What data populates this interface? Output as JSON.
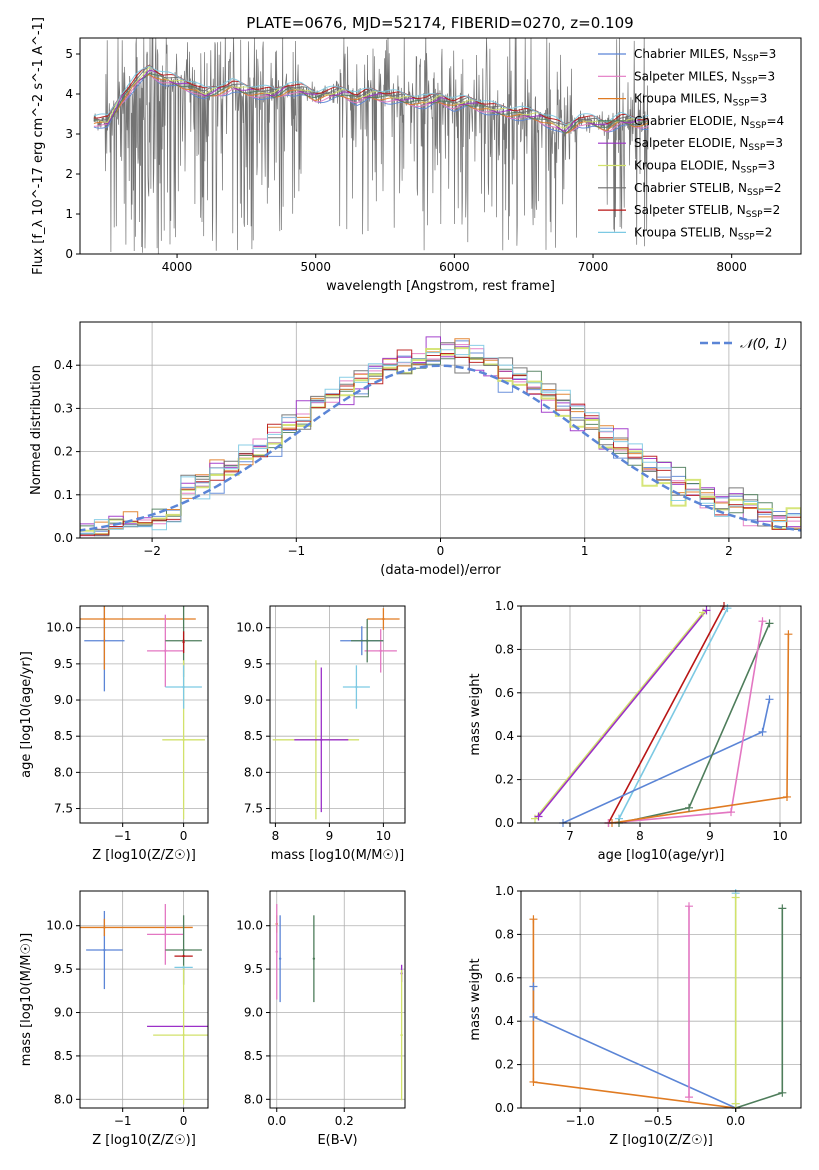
{
  "figure": {
    "title": "PLATE=0676, MJD=52174, FIBERID=0270, z=0.109",
    "colors": {
      "data_spectrum": "#808080",
      "gaussian": "#5b85d6",
      "grid": "#b0b0b0"
    }
  },
  "chart_data": [
    {
      "id": "spectrum",
      "type": "line",
      "xlabel": "wavelength [Angstrom, rest frame]",
      "ylabel": "Flux [f_λ 10^-17 erg cm^-2 s^-1 A^-1]",
      "xlim": [
        3300,
        8500
      ],
      "ylim": [
        0,
        5.4
      ],
      "xticks": [
        "4000",
        "5000",
        "6000",
        "7000",
        "8000"
      ],
      "yticks": [
        "0",
        "1",
        "2",
        "3",
        "4",
        "5"
      ],
      "grid": false,
      "legend_position": "top-right",
      "data_spectrum": {
        "range": [
          3400,
          7400
        ],
        "note_visible": "grey observed spectrum with strong noise spikes between ~3450 and ~7400 Å"
      },
      "series": [
        {
          "name": "Chabrier MILES, N_SSP=3",
          "color": "#5b85d6"
        },
        {
          "name": "Salpeter MILES, N_SSP=3",
          "color": "#e377c2"
        },
        {
          "name": "Kroupa MILES, N_SSP=3",
          "color": "#e07b22"
        },
        {
          "name": "Chabrier ELODIE, N_SSP=4",
          "color": "#4e7d5b"
        },
        {
          "name": "Salpeter ELODIE, N_SSP=3",
          "color": "#9b30c8"
        },
        {
          "name": "Kroupa ELODIE, N_SSP=3",
          "color": "#d2e26b"
        },
        {
          "name": "Chabrier STELIB, N_SSP=2",
          "color": "#6c6c6c"
        },
        {
          "name": "Salpeter STELIB, N_SSP=2",
          "color": "#b81515"
        },
        {
          "name": "Kroupa STELIB, N_SSP=2",
          "color": "#7cc9e3"
        }
      ],
      "model_curve": {
        "x": [
          3400,
          3500,
          3600,
          3700,
          3800,
          3900,
          4000,
          4100,
          4200,
          4300,
          4400,
          4500,
          4600,
          4700,
          4800,
          4900,
          5000,
          5100,
          5200,
          5300,
          5400,
          5500,
          5600,
          5700,
          5800,
          5900,
          6000,
          6100,
          6200,
          6300,
          6400,
          6500,
          6600,
          6700,
          6800,
          6900,
          7000,
          7100,
          7200,
          7300,
          7400
        ],
        "y": [
          3.35,
          3.3,
          3.9,
          4.3,
          4.6,
          4.4,
          4.3,
          4.2,
          4.0,
          4.1,
          4.2,
          4.1,
          4.05,
          4.0,
          4.15,
          4.1,
          3.95,
          4.0,
          4.05,
          3.9,
          4.0,
          3.95,
          3.9,
          3.85,
          3.8,
          3.9,
          3.75,
          3.8,
          3.7,
          3.6,
          3.55,
          3.5,
          3.45,
          3.3,
          3.1,
          3.35,
          3.3,
          3.2,
          3.35,
          3.3,
          3.3
        ]
      }
    },
    {
      "id": "residuals",
      "type": "line",
      "xlabel": "(data-model)/error",
      "ylabel": "Normed distribution",
      "xlim": [
        -2.5,
        2.5
      ],
      "ylim": [
        0,
        0.5
      ],
      "xticks": [
        "−2",
        "−1",
        "0",
        "1",
        "2"
      ],
      "yticks": [
        "0.0",
        "0.1",
        "0.2",
        "0.3",
        "0.4"
      ],
      "grid": true,
      "legend_position": "top-right",
      "legend": [
        "𝒩(0, 1)"
      ],
      "bin_width": 0.1,
      "note_visible": "nine step histograms of normalized residuals plus a dashed N(0,1) density"
    },
    {
      "id": "age_vs_Z",
      "type": "scatter",
      "xlabel": "Z [log10(Z/Z☉)]",
      "ylabel": "age  [log10(age/yr)]",
      "xlim": [
        -1.7,
        0.4
      ],
      "ylim": [
        7.3,
        10.3
      ],
      "xticks": [
        "−1",
        "0"
      ],
      "yticks": [
        "7.5",
        "8.0",
        "8.5",
        "9.0",
        "9.5",
        "10.0"
      ],
      "grid": true,
      "points": [
        {
          "series": "Chabrier MILES",
          "x": -1.3,
          "y": 9.82,
          "xerr": 0.33,
          "yerr": 0.7
        },
        {
          "series": "Kroupa MILES",
          "x": -1.3,
          "y": 10.12,
          "xerr": 1.5,
          "yerr": 0.7
        },
        {
          "series": "Salpeter MILES",
          "x": -0.3,
          "y": 9.68,
          "xerr": 0.3,
          "yerr": 0.5
        },
        {
          "series": "Chabrier ELODIE",
          "x": 0.0,
          "y": 9.82,
          "xerr": 0.3,
          "yerr": 0.5
        },
        {
          "series": "Kroupa ELODIE",
          "x": 0.0,
          "y": 8.45,
          "xerr": 0.35,
          "yerr": 1.1
        },
        {
          "series": "Kroupa STELIB",
          "x": 0.0,
          "y": 9.18,
          "xerr": 0.3,
          "yerr": 0.3
        },
        {
          "series": "Salpeter STELIB",
          "x": 0.0,
          "y": 9.8,
          "xerr": 0.0,
          "yerr": 0.15
        }
      ]
    },
    {
      "id": "age_vs_mass",
      "type": "scatter",
      "xlabel": "mass [log10(M/M☉)]",
      "ylabel": "",
      "xlim": [
        7.9,
        10.4
      ],
      "ylim": [
        7.3,
        10.3
      ],
      "xticks": [
        "8",
        "9",
        "10"
      ],
      "yticks": [
        "7.5",
        "8.0",
        "8.5",
        "9.0",
        "9.5",
        "10.0"
      ],
      "grid": true,
      "points": [
        {
          "series": "Kroupa ELODIE",
          "x": 8.75,
          "y": 8.45,
          "xerr": 0.8,
          "yerr": 1.1
        },
        {
          "series": "Salpeter ELODIE",
          "x": 8.85,
          "y": 8.45,
          "xerr": 0.5,
          "yerr": 1.0
        },
        {
          "series": "Chabrier MILES",
          "x": 9.6,
          "y": 9.82,
          "xerr": 0.4,
          "yerr": 0.2
        },
        {
          "series": "Kroupa MILES",
          "x": 10.0,
          "y": 10.12,
          "xerr": 0.3,
          "yerr": 0.15
        },
        {
          "series": "Salpeter MILES",
          "x": 9.95,
          "y": 9.68,
          "xerr": 0.3,
          "yerr": 0.3
        },
        {
          "series": "Chabrier ELODIE",
          "x": 9.7,
          "y": 9.82,
          "xerr": 0.3,
          "yerr": 0.3
        },
        {
          "series": "Kroupa STELIB",
          "x": 9.5,
          "y": 9.18,
          "xerr": 0.25,
          "yerr": 0.3
        }
      ]
    },
    {
      "id": "mass_weight_vs_age",
      "type": "line",
      "xlabel": "age  [log10(age/yr)]",
      "ylabel": "mass weight",
      "xlim": [
        6.3,
        10.3
      ],
      "ylim": [
        0,
        1.0
      ],
      "xticks": [
        "7",
        "8",
        "9",
        "10"
      ],
      "yticks": [
        "0.0",
        "0.2",
        "0.4",
        "0.6",
        "0.8",
        "1.0"
      ],
      "grid": true,
      "series": [
        {
          "name": "Kroupa ELODIE",
          "x": [
            6.5,
            8.9
          ],
          "y": [
            0.02,
            0.97
          ]
        },
        {
          "name": "Salpeter ELODIE",
          "x": [
            6.55,
            8.95
          ],
          "y": [
            0.03,
            0.98
          ]
        },
        {
          "name": "Salpeter STELIB",
          "x": [
            7.55,
            9.2
          ],
          "y": [
            0.0,
            1.0
          ]
        },
        {
          "name": "Kroupa STELIB",
          "x": [
            7.7,
            9.25
          ],
          "y": [
            0.02,
            0.99
          ]
        },
        {
          "name": "Chabrier MILES",
          "x": [
            6.9,
            9.75,
            9.85
          ],
          "y": [
            0.0,
            0.42,
            0.57
          ]
        },
        {
          "name": "Chabrier ELODIE",
          "x": [
            7.7,
            8.7,
            9.85
          ],
          "y": [
            0.0,
            0.07,
            0.92
          ]
        },
        {
          "name": "Salpeter MILES",
          "x": [
            7.55,
            9.3,
            9.75
          ],
          "y": [
            0.0,
            0.05,
            0.93
          ]
        },
        {
          "name": "Kroupa MILES",
          "x": [
            7.6,
            10.1,
            10.12
          ],
          "y": [
            0.0,
            0.12,
            0.87
          ]
        }
      ]
    },
    {
      "id": "mass_vs_Z",
      "type": "scatter",
      "xlabel": "Z [log10(Z/Z☉)]",
      "ylabel": "mass [log10(M/M☉)]",
      "xlim": [
        -1.7,
        0.4
      ],
      "ylim": [
        7.9,
        10.4
      ],
      "xticks": [
        "−1",
        "0"
      ],
      "yticks": [
        "8.0",
        "8.5",
        "9.0",
        "9.5",
        "10.0"
      ],
      "grid": true,
      "points": [
        {
          "series": "Chabrier MILES",
          "x": -1.3,
          "y": 9.72,
          "xerr": 0.3,
          "yerr": 0.45
        },
        {
          "series": "Kroupa MILES",
          "x": -1.3,
          "y": 9.98,
          "xerr": 1.45,
          "yerr": 0.1
        },
        {
          "series": "Salpeter MILES",
          "x": -0.3,
          "y": 9.9,
          "xerr": 0.3,
          "yerr": 0.35
        },
        {
          "series": "Chabrier ELODIE",
          "x": 0.0,
          "y": 9.72,
          "xerr": 0.3,
          "yerr": 0.4
        },
        {
          "series": "Salpeter ELODIE",
          "x": 0.0,
          "y": 8.84,
          "xerr": 0.6,
          "yerr": 0.0
        },
        {
          "series": "Kroupa ELODIE",
          "x": 0.0,
          "y": 8.74,
          "xerr": 0.5,
          "yerr": 0.8
        },
        {
          "series": "Salpeter STELIB",
          "x": 0.0,
          "y": 9.65,
          "xerr": 0.15,
          "yerr": 0.0
        },
        {
          "series": "Kroupa STELIB",
          "x": 0.0,
          "y": 9.52,
          "xerr": 0.15,
          "yerr": 0.0
        }
      ]
    },
    {
      "id": "mass_vs_ebv",
      "type": "scatter",
      "xlabel": "E(B-V)",
      "ylabel": "",
      "xlim": [
        -0.02,
        0.38
      ],
      "ylim": [
        7.9,
        10.4
      ],
      "xticks": [
        "0.0",
        "0.2"
      ],
      "yticks": [
        "8.0",
        "8.5",
        "9.0",
        "9.5",
        "10.0"
      ],
      "grid": true,
      "points": [
        {
          "series": "Chabrier MILES",
          "x": 0.01,
          "y": 9.62,
          "xerr": 0.0,
          "yerr": 0.5
        },
        {
          "series": "Kroupa MILES",
          "x": 0.0,
          "y": 10.02,
          "xerr": 0.0,
          "yerr": 0.1
        },
        {
          "series": "Salpeter MILES",
          "x": 0.0,
          "y": 9.7,
          "xerr": 0.0,
          "yerr": 0.55
        },
        {
          "series": "Chabrier ELODIE",
          "x": 0.11,
          "y": 9.62,
          "xerr": 0.0,
          "yerr": 0.5
        },
        {
          "series": "Salpeter ELODIE",
          "x": 0.37,
          "y": 9.45,
          "xerr": 0.0,
          "yerr": 0.1
        },
        {
          "series": "Kroupa ELODIE",
          "x": 0.37,
          "y": 8.74,
          "xerr": 0.0,
          "yerr": 0.75
        }
      ]
    },
    {
      "id": "mass_weight_vs_Z",
      "type": "line",
      "xlabel": "Z [log10(Z/Z☉)]",
      "ylabel": "mass weight",
      "xlim": [
        -1.38,
        0.42
      ],
      "ylim": [
        0,
        1.0
      ],
      "xticks": [
        "−1.0",
        "−0.5",
        "0.0"
      ],
      "yticks": [
        "0.0",
        "0.2",
        "0.4",
        "0.6",
        "0.8",
        "1.0"
      ],
      "grid": true,
      "series": [
        {
          "name": "Chabrier MILES",
          "x": [
            -1.3,
            -1.3,
            0.0
          ],
          "y": [
            0.56,
            0.42,
            0.0
          ]
        },
        {
          "name": "Kroupa MILES",
          "x": [
            -1.3,
            -1.3,
            0.0
          ],
          "y": [
            0.87,
            0.12,
            0.0
          ]
        },
        {
          "name": "Salpeter MILES",
          "x": [
            -0.3,
            -0.3
          ],
          "y": [
            0.93,
            0.05
          ]
        },
        {
          "name": "Kroupa STELIB",
          "x": [
            0.0,
            0.0
          ],
          "y": [
            0.99,
            0.02
          ]
        },
        {
          "name": "Chabrier ELODIE",
          "x": [
            0.0,
            0.3,
            0.3
          ],
          "y": [
            0.0,
            0.07,
            0.92
          ]
        },
        {
          "name": "Kroupa ELODIE",
          "x": [
            0.0,
            0.0
          ],
          "y": [
            0.97,
            0.02
          ]
        }
      ]
    }
  ]
}
